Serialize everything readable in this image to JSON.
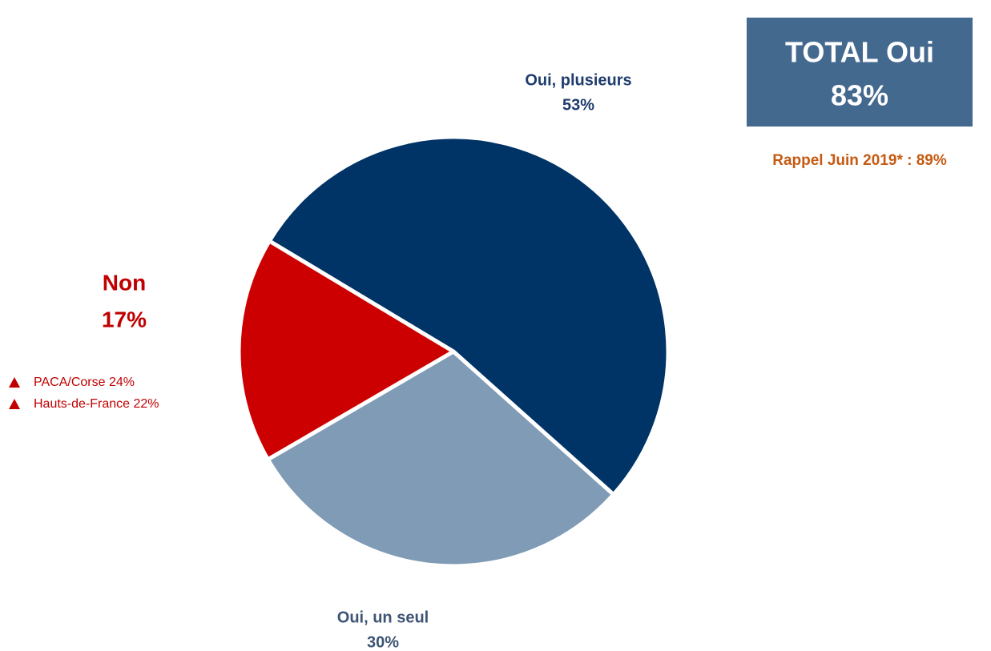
{
  "chart_data": {
    "type": "pie",
    "categories": [
      "Oui, plusieurs",
      "Oui, un seul",
      "Non"
    ],
    "values": [
      53,
      30,
      17
    ],
    "value_labels": [
      "53%",
      "30%",
      "17%"
    ],
    "colors": [
      "#003366",
      "#7f9bb5",
      "#cc0000"
    ],
    "label_colors": [
      "#1f3c6e",
      "#3e5474",
      "#c00000"
    ],
    "total": {
      "label": "TOTAL Oui",
      "value_label": "83%"
    },
    "recall": "Rappel Juin 2019* : 89%",
    "annotations": [
      "PACA/Corse 24%",
      "Hauts-de-France 22%"
    ]
  }
}
